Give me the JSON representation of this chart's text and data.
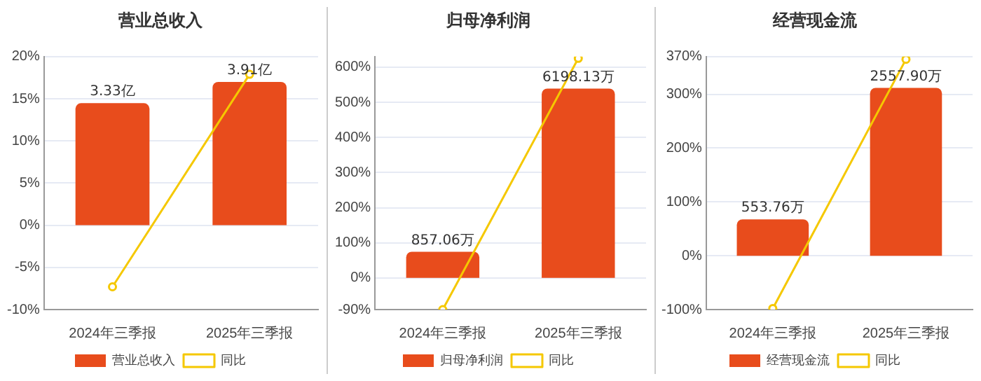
{
  "chart_data": [
    {
      "type": "bar",
      "title": "营业总收入",
      "categories": [
        "2024年三季报",
        "2025年三季报"
      ],
      "legend": "bottom",
      "grid": "y",
      "tick_labels": "xy",
      "marker": "circle",
      "ylim": [
        -10,
        20
      ],
      "yticks": [
        {
          "value": -10,
          "label": "-10%"
        },
        {
          "value": -5,
          "label": "-5%"
        },
        {
          "value": 0,
          "label": "0%"
        },
        {
          "value": 5,
          "label": "5%"
        },
        {
          "value": 10,
          "label": "10%"
        },
        {
          "value": 15,
          "label": "15%"
        },
        {
          "value": 20,
          "label": "20%"
        }
      ],
      "y2lim": [
        -2.3,
        4.6
      ],
      "series": [
        {
          "name": "营业总收入",
          "axis": "y2",
          "color": "#e84c1c",
          "values": [
            3.33,
            3.91
          ],
          "value_labels": [
            "3.33亿",
            "3.91亿"
          ]
        },
        {
          "name": "同比",
          "type": "line",
          "axis": "y",
          "color": "#f5c800",
          "values": [
            -7.3,
            17.9
          ]
        }
      ]
    },
    {
      "type": "bar",
      "title": "归母净利润",
      "categories": [
        "2024年三季报",
        "2025年三季报"
      ],
      "legend": "bottom",
      "grid": "y",
      "tick_labels": "xy",
      "marker": "circle",
      "ylim": [
        -90,
        630
      ],
      "yticks": [
        {
          "value": -90,
          "label": "-90%"
        },
        {
          "value": 0,
          "label": "0%"
        },
        {
          "value": 100,
          "label": "100%"
        },
        {
          "value": 200,
          "label": "200%"
        },
        {
          "value": 300,
          "label": "300%"
        },
        {
          "value": 400,
          "label": "400%"
        },
        {
          "value": 500,
          "label": "500%"
        },
        {
          "value": 600,
          "label": "600%"
        }
      ],
      "y2lim": [
        -1035,
        7245
      ],
      "series": [
        {
          "name": "归母净利润",
          "axis": "y2",
          "color": "#e84c1c",
          "values": [
            857.06,
            6198.13
          ],
          "value_labels": [
            "857.06万",
            "6198.13万"
          ]
        },
        {
          "name": "同比",
          "type": "line",
          "axis": "y",
          "color": "#f5c800",
          "values": [
            -90,
            625
          ]
        }
      ]
    },
    {
      "type": "bar",
      "title": "经营现金流",
      "categories": [
        "2024年三季报",
        "2025年三季报"
      ],
      "legend": "bottom",
      "grid": "y",
      "tick_labels": "xy",
      "marker": "circle",
      "ylim": [
        -100,
        370
      ],
      "yticks": [
        {
          "value": -100,
          "label": "-100%"
        },
        {
          "value": 0,
          "label": "0%"
        },
        {
          "value": 100,
          "label": "100%"
        },
        {
          "value": 200,
          "label": "200%"
        },
        {
          "value": 300,
          "label": "300%"
        },
        {
          "value": 370,
          "label": "370%"
        }
      ],
      "y2lim": [
        -820,
        3034
      ],
      "series": [
        {
          "name": "经营现金流",
          "axis": "y2",
          "color": "#e84c1c",
          "values": [
            553.76,
            2557.9
          ],
          "value_labels": [
            "553.76万",
            "2557.90万"
          ]
        },
        {
          "name": "同比",
          "type": "line",
          "axis": "y",
          "color": "#f5c800",
          "values": [
            -98,
            365
          ]
        }
      ]
    }
  ]
}
